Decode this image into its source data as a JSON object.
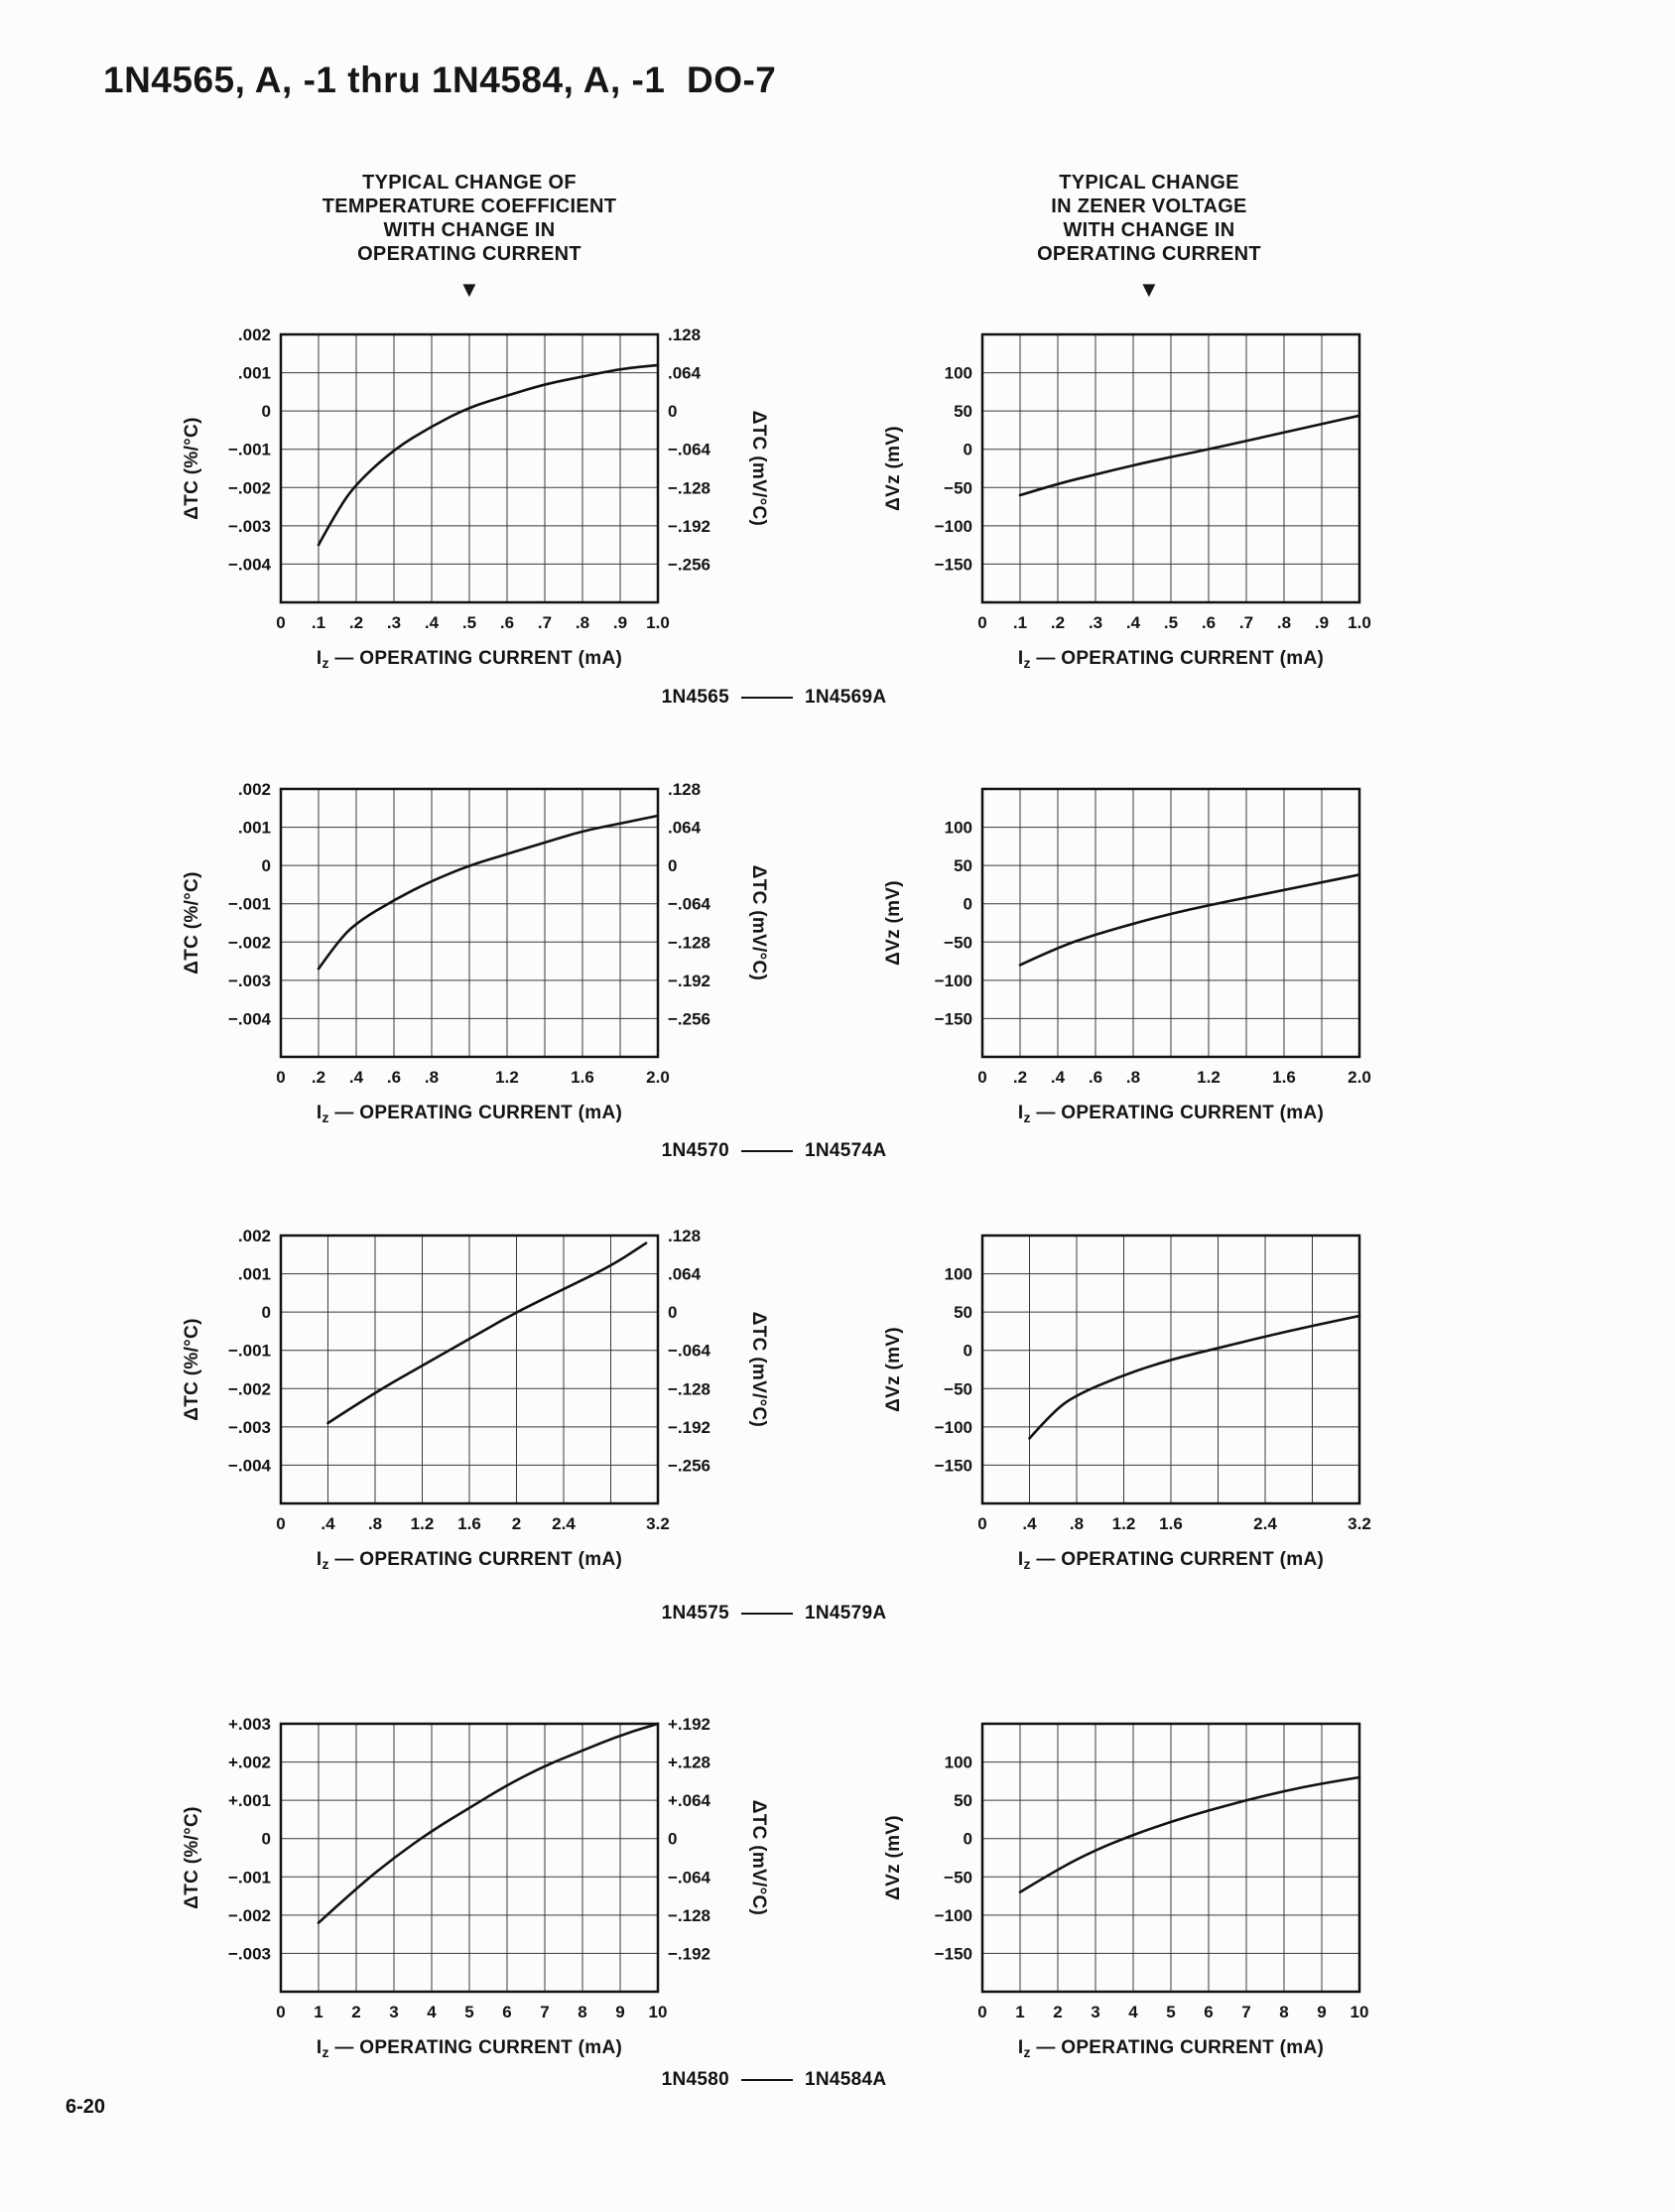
{
  "page": {
    "title": "1N4565, A, -1 thru 1N4584, A, -1  DO-7",
    "page_number": "6-20"
  },
  "headers": {
    "left": {
      "lines": [
        "TYPICAL CHANGE OF",
        "TEMPERATURE COEFFICIENT",
        "WITH CHANGE IN",
        "OPERATING CURRENT"
      ],
      "arrow": "▼"
    },
    "right": {
      "lines": [
        "TYPICAL CHANGE",
        "IN ZENER VOLTAGE",
        "WITH CHANGE IN",
        "OPERATING CURRENT"
      ],
      "arrow": "▼"
    }
  },
  "captions": [
    {
      "left": "1N4565",
      "right": "1N4569A"
    },
    {
      "left": "1N4570",
      "right": "1N4574A"
    },
    {
      "left": "1N4575",
      "right": "1N4579A"
    },
    {
      "left": "1N4580",
      "right": "1N4584A"
    }
  ],
  "chart_data": [
    {
      "type": "line",
      "group": "1N4565 - 1N4569A",
      "title": "",
      "ylabel_left": "ΔTC (%/°C)",
      "ylabel_right": "ΔTC (mV/°C)",
      "xlabel": {
        "pre": "I",
        "sub": "z",
        "rest": " — OPERATING CURRENT (mA)"
      },
      "xlim": [
        0,
        1.0
      ],
      "ylim": [
        0.002,
        -0.005
      ],
      "x_grid": [
        0,
        0.1,
        0.2,
        0.3,
        0.4,
        0.5,
        0.6,
        0.7,
        0.8,
        0.9,
        1.0
      ],
      "y_grid": [
        0.002,
        0.001,
        0,
        -0.001,
        -0.002,
        -0.003,
        -0.004,
        -0.005
      ],
      "x_ticks": [
        {
          "v": 0,
          "label": "0"
        },
        {
          "v": 0.1,
          "label": ".1"
        },
        {
          "v": 0.2,
          "label": ".2"
        },
        {
          "v": 0.3,
          "label": ".3"
        },
        {
          "v": 0.4,
          "label": ".4"
        },
        {
          "v": 0.5,
          "label": ".5"
        },
        {
          "v": 0.6,
          "label": ".6"
        },
        {
          "v": 0.7,
          "label": ".7"
        },
        {
          "v": 0.8,
          "label": ".8"
        },
        {
          "v": 0.9,
          "label": ".9"
        },
        {
          "v": 1.0,
          "label": "1.0"
        }
      ],
      "y_ticks": [
        {
          "v": 0.002,
          "label": ".002",
          "right": ".128"
        },
        {
          "v": 0.001,
          "label": ".001",
          "right": ".064"
        },
        {
          "v": 0,
          "label": "0",
          "right": "0"
        },
        {
          "v": -0.001,
          "label": "−.001",
          "right": "−.064"
        },
        {
          "v": -0.002,
          "label": "−.002",
          "right": "−.128"
        },
        {
          "v": -0.003,
          "label": "−.003",
          "right": "−.192"
        },
        {
          "v": -0.004,
          "label": "−.004",
          "right": "−.256"
        }
      ],
      "points": [
        [
          0.1,
          -0.0035
        ],
        [
          0.15,
          -0.0026
        ],
        [
          0.2,
          -0.0019
        ],
        [
          0.3,
          -0.001
        ],
        [
          0.4,
          -0.0004
        ],
        [
          0.5,
          0.0001
        ],
        [
          0.6,
          0.0004
        ],
        [
          0.7,
          0.0007
        ],
        [
          0.8,
          0.0009
        ],
        [
          0.9,
          0.0011
        ],
        [
          1.0,
          0.0012
        ]
      ]
    },
    {
      "type": "line",
      "group": "1N4565 - 1N4569A",
      "title": "",
      "ylabel_left": "ΔVz (mV)",
      "xlabel": {
        "pre": "I",
        "sub": "z",
        "rest": " — OPERATING CURRENT (mA)"
      },
      "xlim": [
        0,
        1.0
      ],
      "ylim": [
        150,
        -200
      ],
      "x_grid": [
        0,
        0.1,
        0.2,
        0.3,
        0.4,
        0.5,
        0.6,
        0.7,
        0.8,
        0.9,
        1.0
      ],
      "y_grid": [
        150,
        100,
        50,
        0,
        -50,
        -100,
        -150,
        -200
      ],
      "x_ticks": [
        {
          "v": 0,
          "label": "0"
        },
        {
          "v": 0.1,
          "label": ".1"
        },
        {
          "v": 0.2,
          "label": ".2"
        },
        {
          "v": 0.3,
          "label": ".3"
        },
        {
          "v": 0.4,
          "label": ".4"
        },
        {
          "v": 0.5,
          "label": ".5"
        },
        {
          "v": 0.6,
          "label": ".6"
        },
        {
          "v": 0.7,
          "label": ".7"
        },
        {
          "v": 0.8,
          "label": ".8"
        },
        {
          "v": 0.9,
          "label": ".9"
        },
        {
          "v": 1.0,
          "label": "1.0"
        }
      ],
      "y_ticks": [
        {
          "v": 100,
          "label": "100"
        },
        {
          "v": 50,
          "label": "50"
        },
        {
          "v": 0,
          "label": "0"
        },
        {
          "v": -50,
          "label": "−50"
        },
        {
          "v": -100,
          "label": "−100"
        },
        {
          "v": -150,
          "label": "−150"
        }
      ],
      "points": [
        [
          0.1,
          -60
        ],
        [
          0.2,
          -45
        ],
        [
          0.3,
          -33
        ],
        [
          0.4,
          -21
        ],
        [
          0.5,
          -10
        ],
        [
          0.6,
          0
        ],
        [
          0.7,
          11
        ],
        [
          0.8,
          22
        ],
        [
          0.9,
          33
        ],
        [
          1.0,
          44
        ]
      ]
    },
    {
      "type": "line",
      "group": "1N4570 - 1N4574A",
      "title": "",
      "ylabel_left": "ΔTC (%/°C)",
      "ylabel_right": "ΔTC (mV/°C)",
      "xlabel": {
        "pre": "I",
        "sub": "z",
        "rest": " — OPERATING CURRENT (mA)"
      },
      "xlim": [
        0,
        2.0
      ],
      "ylim": [
        0.002,
        -0.005
      ],
      "x_grid": [
        0,
        0.2,
        0.4,
        0.6,
        0.8,
        1.0,
        1.2,
        1.4,
        1.6,
        1.8,
        2.0
      ],
      "y_grid": [
        0.002,
        0.001,
        0,
        -0.001,
        -0.002,
        -0.003,
        -0.004,
        -0.005
      ],
      "x_ticks": [
        {
          "v": 0,
          "label": "0"
        },
        {
          "v": 0.2,
          "label": ".2"
        },
        {
          "v": 0.4,
          "label": ".4"
        },
        {
          "v": 0.6,
          "label": ".6"
        },
        {
          "v": 0.8,
          "label": ".8"
        },
        {
          "v": 1.2,
          "label": "1.2"
        },
        {
          "v": 1.6,
          "label": "1.6"
        },
        {
          "v": 2.0,
          "label": "2.0"
        }
      ],
      "y_ticks": [
        {
          "v": 0.002,
          "label": ".002",
          "right": ".128"
        },
        {
          "v": 0.001,
          "label": ".001",
          "right": ".064"
        },
        {
          "v": 0,
          "label": "0",
          "right": "0"
        },
        {
          "v": -0.001,
          "label": "−.001",
          "right": "−.064"
        },
        {
          "v": -0.002,
          "label": "−.002",
          "right": "−.128"
        },
        {
          "v": -0.003,
          "label": "−.003",
          "right": "−.192"
        },
        {
          "v": -0.004,
          "label": "−.004",
          "right": "−.256"
        }
      ],
      "points": [
        [
          0.2,
          -0.0027
        ],
        [
          0.3,
          -0.002
        ],
        [
          0.4,
          -0.0015
        ],
        [
          0.6,
          -0.0009
        ],
        [
          0.8,
          -0.0004
        ],
        [
          1.0,
          0
        ],
        [
          1.2,
          0.0003
        ],
        [
          1.4,
          0.0006
        ],
        [
          1.6,
          0.0009
        ],
        [
          1.8,
          0.0011
        ],
        [
          2.0,
          0.0013
        ]
      ]
    },
    {
      "type": "line",
      "group": "1N4570 - 1N4574A",
      "title": "",
      "ylabel_left": "ΔVz (mV)",
      "xlabel": {
        "pre": "I",
        "sub": "z",
        "rest": " — OPERATING CURRENT (mA)"
      },
      "xlim": [
        0,
        2.0
      ],
      "ylim": [
        150,
        -200
      ],
      "x_grid": [
        0,
        0.2,
        0.4,
        0.6,
        0.8,
        1.0,
        1.2,
        1.4,
        1.6,
        1.8,
        2.0
      ],
      "y_grid": [
        150,
        100,
        50,
        0,
        -50,
        -100,
        -150,
        -200
      ],
      "x_ticks": [
        {
          "v": 0,
          "label": "0"
        },
        {
          "v": 0.2,
          "label": ".2"
        },
        {
          "v": 0.4,
          "label": ".4"
        },
        {
          "v": 0.6,
          "label": ".6"
        },
        {
          "v": 0.8,
          "label": ".8"
        },
        {
          "v": 1.2,
          "label": "1.2"
        },
        {
          "v": 1.6,
          "label": "1.6"
        },
        {
          "v": 2.0,
          "label": "2.0"
        }
      ],
      "y_ticks": [
        {
          "v": 100,
          "label": "100"
        },
        {
          "v": 50,
          "label": "50"
        },
        {
          "v": 0,
          "label": "0"
        },
        {
          "v": -50,
          "label": "−50"
        },
        {
          "v": -100,
          "label": "−100"
        },
        {
          "v": -150,
          "label": "−150"
        }
      ],
      "points": [
        [
          0.2,
          -80
        ],
        [
          0.4,
          -57
        ],
        [
          0.6,
          -40
        ],
        [
          0.8,
          -26
        ],
        [
          1.0,
          -13
        ],
        [
          1.2,
          -2
        ],
        [
          1.4,
          8
        ],
        [
          1.6,
          18
        ],
        [
          1.8,
          28
        ],
        [
          2.0,
          38
        ]
      ]
    },
    {
      "type": "line",
      "group": "1N4575 - 1N4579A",
      "title": "",
      "ylabel_left": "ΔTC (%/°C)",
      "ylabel_right": "ΔTC (mV/°C)",
      "xlabel": {
        "pre": "I",
        "sub": "z",
        "rest": " — OPERATING CURRENT (mA)"
      },
      "xlim": [
        0,
        3.2
      ],
      "ylim": [
        0.002,
        -0.005
      ],
      "x_grid": [
        0,
        0.4,
        0.8,
        1.2,
        1.6,
        2.0,
        2.4,
        2.8,
        3.2
      ],
      "y_grid": [
        0.002,
        0.001,
        0,
        -0.001,
        -0.002,
        -0.003,
        -0.004,
        -0.005
      ],
      "x_ticks": [
        {
          "v": 0,
          "label": "0"
        },
        {
          "v": 0.4,
          "label": ".4"
        },
        {
          "v": 0.8,
          "label": ".8"
        },
        {
          "v": 1.2,
          "label": "1.2"
        },
        {
          "v": 1.6,
          "label": "1.6"
        },
        {
          "v": 2.0,
          "label": "2"
        },
        {
          "v": 2.4,
          "label": "2.4"
        },
        {
          "v": 3.2,
          "label": "3.2"
        }
      ],
      "y_ticks": [
        {
          "v": 0.002,
          "label": ".002",
          "right": ".128"
        },
        {
          "v": 0.001,
          "label": ".001",
          "right": ".064"
        },
        {
          "v": 0,
          "label": "0",
          "right": "0"
        },
        {
          "v": -0.001,
          "label": "−.001",
          "right": "−.064"
        },
        {
          "v": -0.002,
          "label": "−.002",
          "right": "−.128"
        },
        {
          "v": -0.003,
          "label": "−.003",
          "right": "−.192"
        },
        {
          "v": -0.004,
          "label": "−.004",
          "right": "−.256"
        }
      ],
      "points": [
        [
          0.4,
          -0.0029
        ],
        [
          0.8,
          -0.0021
        ],
        [
          1.2,
          -0.0014
        ],
        [
          1.6,
          -0.0007
        ],
        [
          2.0,
          0
        ],
        [
          2.4,
          0.0006
        ],
        [
          2.8,
          0.0012
        ],
        [
          3.1,
          0.0018
        ]
      ]
    },
    {
      "type": "line",
      "group": "1N4575 - 1N4579A",
      "title": "",
      "ylabel_left": "ΔVz (mV)",
      "xlabel": {
        "pre": "I",
        "sub": "z",
        "rest": " — OPERATING CURRENT (mA)"
      },
      "xlim": [
        0,
        3.2
      ],
      "ylim": [
        150,
        -200
      ],
      "x_grid": [
        0,
        0.4,
        0.8,
        1.2,
        1.6,
        2.0,
        2.4,
        2.8,
        3.2
      ],
      "y_grid": [
        150,
        100,
        50,
        0,
        -50,
        -100,
        -150,
        -200
      ],
      "x_ticks": [
        {
          "v": 0,
          "label": "0"
        },
        {
          "v": 0.4,
          "label": ".4"
        },
        {
          "v": 0.8,
          "label": ".8"
        },
        {
          "v": 1.2,
          "label": "1.2"
        },
        {
          "v": 1.6,
          "label": "1.6"
        },
        {
          "v": 2.4,
          "label": "2.4"
        },
        {
          "v": 3.2,
          "label": "3.2"
        }
      ],
      "y_ticks": [
        {
          "v": 100,
          "label": "100"
        },
        {
          "v": 50,
          "label": "50"
        },
        {
          "v": 0,
          "label": "0"
        },
        {
          "v": -50,
          "label": "−50"
        },
        {
          "v": -100,
          "label": "−100"
        },
        {
          "v": -150,
          "label": "−150"
        }
      ],
      "points": [
        [
          0.4,
          -115
        ],
        [
          0.6,
          -80
        ],
        [
          0.8,
          -58
        ],
        [
          1.2,
          -32
        ],
        [
          1.6,
          -12
        ],
        [
          2.0,
          3
        ],
        [
          2.4,
          18
        ],
        [
          2.8,
          32
        ],
        [
          3.2,
          45
        ]
      ]
    },
    {
      "type": "line",
      "group": "1N4580 - 1N4584A",
      "title": "",
      "ylabel_left": "ΔTC (%/°C)",
      "ylabel_right": "ΔTC (mV/°C)",
      "xlabel": {
        "pre": "I",
        "sub": "z",
        "rest": " — OPERATING CURRENT (mA)"
      },
      "xlim": [
        0,
        10
      ],
      "ylim": [
        0.003,
        -0.004
      ],
      "x_grid": [
        0,
        1,
        2,
        3,
        4,
        5,
        6,
        7,
        8,
        9,
        10
      ],
      "y_grid": [
        0.003,
        0.002,
        0.001,
        0,
        -0.001,
        -0.002,
        -0.003,
        -0.004
      ],
      "x_ticks": [
        {
          "v": 0,
          "label": "0"
        },
        {
          "v": 1,
          "label": "1"
        },
        {
          "v": 2,
          "label": "2"
        },
        {
          "v": 3,
          "label": "3"
        },
        {
          "v": 4,
          "label": "4"
        },
        {
          "v": 5,
          "label": "5"
        },
        {
          "v": 6,
          "label": "6"
        },
        {
          "v": 7,
          "label": "7"
        },
        {
          "v": 8,
          "label": "8"
        },
        {
          "v": 9,
          "label": "9"
        },
        {
          "v": 10,
          "label": "10"
        }
      ],
      "y_ticks": [
        {
          "v": 0.003,
          "label": "+.003",
          "right": "+.192"
        },
        {
          "v": 0.002,
          "label": "+.002",
          "right": "+.128"
        },
        {
          "v": 0.001,
          "label": "+.001",
          "right": "+.064"
        },
        {
          "v": 0,
          "label": "0",
          "right": "0"
        },
        {
          "v": -0.001,
          "label": "−.001",
          "right": "−.064"
        },
        {
          "v": -0.002,
          "label": "−.002",
          "right": "−.128"
        },
        {
          "v": -0.003,
          "label": "−.003",
          "right": "−.192"
        }
      ],
      "points": [
        [
          1,
          -0.0022
        ],
        [
          2,
          -0.0013
        ],
        [
          3,
          -0.0005
        ],
        [
          4,
          0.0002
        ],
        [
          5,
          0.0008
        ],
        [
          6,
          0.0014
        ],
        [
          7,
          0.0019
        ],
        [
          8,
          0.0023
        ],
        [
          9,
          0.0027
        ],
        [
          10,
          0.003
        ]
      ]
    },
    {
      "type": "line",
      "group": "1N4580 - 1N4584A",
      "title": "",
      "ylabel_left": "ΔVz (mV)",
      "xlabel": {
        "pre": "I",
        "sub": "z",
        "rest": " — OPERATING CURRENT (mA)"
      },
      "xlim": [
        0,
        10
      ],
      "ylim": [
        150,
        -200
      ],
      "x_grid": [
        0,
        1,
        2,
        3,
        4,
        5,
        6,
        7,
        8,
        9,
        10
      ],
      "y_grid": [
        150,
        100,
        50,
        0,
        -50,
        -100,
        -150,
        -200
      ],
      "x_ticks": [
        {
          "v": 0,
          "label": "0"
        },
        {
          "v": 1,
          "label": "1"
        },
        {
          "v": 2,
          "label": "2"
        },
        {
          "v": 3,
          "label": "3"
        },
        {
          "v": 4,
          "label": "4"
        },
        {
          "v": 5,
          "label": "5"
        },
        {
          "v": 6,
          "label": "6"
        },
        {
          "v": 7,
          "label": "7"
        },
        {
          "v": 8,
          "label": "8"
        },
        {
          "v": 9,
          "label": "9"
        },
        {
          "v": 10,
          "label": "10"
        }
      ],
      "y_ticks": [
        {
          "v": 100,
          "label": "100"
        },
        {
          "v": 50,
          "label": "50"
        },
        {
          "v": 0,
          "label": "0"
        },
        {
          "v": -50,
          "label": "−50"
        },
        {
          "v": -100,
          "label": "−100"
        },
        {
          "v": -150,
          "label": "−150"
        }
      ],
      "points": [
        [
          1,
          -70
        ],
        [
          2,
          -40
        ],
        [
          3,
          -15
        ],
        [
          4,
          5
        ],
        [
          5,
          22
        ],
        [
          6,
          37
        ],
        [
          7,
          50
        ],
        [
          8,
          62
        ],
        [
          9,
          72
        ],
        [
          10,
          80
        ]
      ]
    }
  ]
}
